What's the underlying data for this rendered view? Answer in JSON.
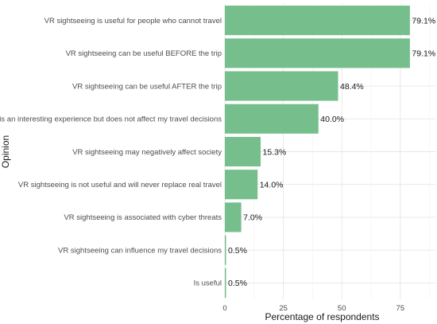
{
  "chart_data": {
    "type": "bar",
    "orientation": "horizontal",
    "categories": [
      "VR sightseeing is useful for people who cannot travel",
      "VR sightseeing can be useful BEFORE the trip",
      "VR sightseeing can be useful AFTER the trip",
      "VR is an interesting experience but does not affect my travel decisions",
      "VR sightseeing may negatively affect society",
      "VR sightseeing is not useful and will never replace real travel",
      "VR sightseeing is associated with cyber threats",
      "VR sightseeing can influence my travel decisions",
      "Is useful"
    ],
    "values": [
      79.1,
      79.1,
      48.4,
      40.0,
      15.3,
      14.0,
      7.0,
      0.5,
      0.5
    ],
    "value_labels": [
      "79.1%",
      "79.1%",
      "48.4%",
      "40.0%",
      "15.3%",
      "14.0%",
      "7.0%",
      "0.5%",
      "0.5%"
    ],
    "xlabel": "Percentage of respondents",
    "ylabel": "Opinion",
    "xlim": [
      0,
      90
    ],
    "xticks": [
      0,
      25,
      50,
      75
    ],
    "xtick_labels": [
      "0",
      "25",
      "50",
      "75"
    ],
    "grid": true,
    "legend": "none",
    "bar_color": "#76bf8c"
  }
}
